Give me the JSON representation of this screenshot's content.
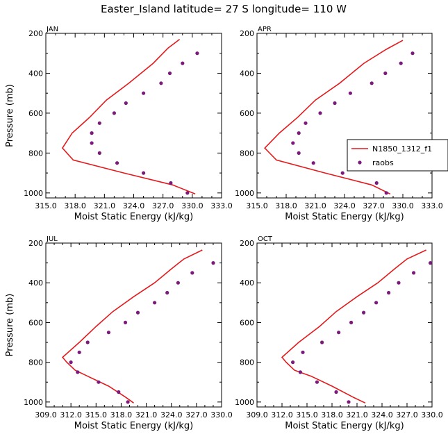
{
  "title": "Easter_Island  latitude= 27 S longitude= 110 W",
  "colors": {
    "model": "#e41a1c",
    "obs": "#7b1a7b",
    "axis": "#000000"
  },
  "legend": {
    "model": "N1850_1312_f1",
    "obs": "raobs",
    "panel": 1
  },
  "chart_data": [
    {
      "type": "line",
      "panel": "JAN",
      "xlabel": "Moist Static Energy (kJ/kg)",
      "ylabel": "Pressure (mb)",
      "xlim": [
        315.0,
        333.0
      ],
      "ylim": [
        1025,
        200
      ],
      "xticks": [
        315.0,
        318.0,
        321.0,
        324.0,
        327.0,
        330.0,
        333.0
      ],
      "xtick_labels": [
        "315.0",
        "318.0",
        "321.0",
        "324.0",
        "327.0",
        "330.0",
        "333.0"
      ],
      "yticks": [
        200,
        400,
        600,
        800,
        1000
      ],
      "ytick_labels": [
        "200",
        "400",
        "600",
        "800",
        "1000"
      ],
      "series": [
        {
          "kind": "line",
          "x": [
            328.7,
            327.5,
            326.0,
            323.5,
            321.2,
            319.5,
            317.7,
            316.7,
            317.8,
            323.0,
            328.0,
            330.3
          ],
          "y": [
            230,
            275,
            350,
            450,
            535,
            620,
            700,
            775,
            835,
            900,
            960,
            1005
          ]
        },
        {
          "kind": "scatter",
          "x": [
            330.5,
            329.0,
            327.7,
            326.8,
            325.0,
            323.2,
            322.0,
            320.5,
            319.7,
            319.7,
            320.5,
            322.3,
            325.0,
            327.8,
            329.5
          ],
          "y": [
            300,
            350,
            400,
            450,
            500,
            550,
            600,
            650,
            700,
            750,
            800,
            850,
            900,
            950,
            1000
          ]
        }
      ]
    },
    {
      "type": "line",
      "panel": "APR",
      "xlabel": "Moist Static Energy (kJ/kg)",
      "ylabel": "",
      "xlim": [
        315.0,
        333.0
      ],
      "ylim": [
        1025,
        200
      ],
      "xticks": [
        315.0,
        318.0,
        321.0,
        324.0,
        327.0,
        330.0,
        333.0
      ],
      "xtick_labels": [
        "315.0",
        "318.0",
        "321.0",
        "324.0",
        "327.0",
        "330.0",
        "333.0"
      ],
      "yticks": [
        200,
        400,
        600,
        800,
        1000
      ],
      "ytick_labels": [
        "200",
        "400",
        "600",
        "800",
        "1000"
      ],
      "series": [
        {
          "kind": "line",
          "x": [
            330.0,
            328.3,
            326.0,
            323.5,
            321.0,
            319.2,
            317.3,
            315.8,
            317.0,
            322.0,
            326.8,
            328.7
          ],
          "y": [
            235,
            280,
            350,
            450,
            535,
            620,
            700,
            775,
            835,
            900,
            960,
            1005
          ]
        },
        {
          "kind": "scatter",
          "x": [
            331.0,
            329.8,
            328.2,
            326.8,
            324.6,
            323.0,
            321.5,
            320.0,
            319.3,
            318.7,
            319.3,
            320.8,
            323.8,
            327.3,
            328.3
          ],
          "y": [
            300,
            350,
            400,
            450,
            500,
            550,
            600,
            650,
            700,
            750,
            800,
            850,
            900,
            950,
            1000
          ]
        }
      ]
    },
    {
      "type": "line",
      "panel": "JUL",
      "xlabel": "Moist Static Energy (kJ/kg)",
      "ylabel": "Pressure (mb)",
      "xlim": [
        309.0,
        330.0
      ],
      "ylim": [
        1025,
        200
      ],
      "xticks": [
        309.0,
        312.0,
        315.0,
        318.0,
        321.0,
        324.0,
        327.0,
        330.0
      ],
      "xtick_labels": [
        "309.0",
        "312.0",
        "315.0",
        "318.0",
        "321.0",
        "324.0",
        "327.0",
        "330.0"
      ],
      "yticks": [
        200,
        400,
        600,
        800,
        1000
      ],
      "ytick_labels": [
        "200",
        "400",
        "600",
        "800",
        "1000"
      ],
      "series": [
        {
          "kind": "line",
          "x": [
            327.7,
            325.5,
            324.0,
            322.0,
            319.5,
            317.0,
            315.0,
            313.0,
            311.0,
            311.5,
            312.5,
            314.0,
            316.5,
            318.5,
            319.5
          ],
          "y": [
            235,
            280,
            330,
            400,
            470,
            545,
            620,
            700,
            775,
            800,
            840,
            870,
            920,
            975,
            1005
          ]
        },
        {
          "kind": "scatter",
          "x": [
            329.0,
            326.5,
            324.8,
            323.5,
            322.0,
            320.0,
            318.5,
            316.5,
            314.0,
            313.0,
            312.0,
            312.8,
            315.3,
            317.7,
            318.8
          ],
          "y": [
            300,
            350,
            400,
            450,
            500,
            550,
            600,
            650,
            700,
            750,
            800,
            850,
            900,
            950,
            1000
          ]
        }
      ]
    },
    {
      "type": "line",
      "panel": "OCT",
      "xlabel": "Moist Static Energy (kJ/kg)",
      "ylabel": "",
      "xlim": [
        309.0,
        330.0
      ],
      "ylim": [
        1025,
        200
      ],
      "xticks": [
        309.0,
        312.0,
        315.0,
        318.0,
        321.0,
        324.0,
        327.0,
        330.0
      ],
      "xtick_labels": [
        "309.0",
        "312.0",
        "315.0",
        "318.0",
        "321.0",
        "324.0",
        "327.0",
        "330.0"
      ],
      "yticks": [
        200,
        400,
        600,
        800,
        1000
      ],
      "ytick_labels": [
        "200",
        "400",
        "600",
        "800",
        "1000"
      ],
      "series": [
        {
          "kind": "line",
          "x": [
            329.3,
            327.0,
            325.5,
            323.5,
            321.0,
            318.5,
            316.5,
            314.0,
            312.0,
            312.5,
            313.5,
            315.5,
            318.0,
            320.5,
            322.0
          ],
          "y": [
            235,
            280,
            330,
            400,
            470,
            545,
            620,
            700,
            775,
            800,
            840,
            870,
            920,
            975,
            1005
          ]
        },
        {
          "kind": "scatter",
          "x": [
            329.8,
            327.8,
            326.0,
            324.8,
            323.3,
            321.8,
            320.3,
            318.8,
            316.8,
            314.5,
            313.3,
            314.2,
            316.2,
            318.5,
            320.0
          ],
          "y": [
            300,
            350,
            400,
            450,
            500,
            550,
            600,
            650,
            700,
            750,
            800,
            850,
            900,
            950,
            1000
          ]
        }
      ]
    }
  ]
}
